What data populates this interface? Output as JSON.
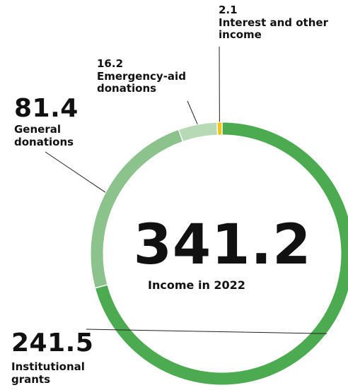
{
  "chart_data": {
    "type": "pie",
    "variant": "donut",
    "total_value": "341.2",
    "total_caption": "Income in 2022",
    "categories": [
      "Institutional grants",
      "General donations",
      "Emergency-aid donations",
      "Interest and other income"
    ],
    "values": [
      241.5,
      81.4,
      16.2,
      2.1
    ],
    "labels": [
      {
        "value": "241.5",
        "text": "Institutional grants"
      },
      {
        "value": "81.4",
        "text": "General donations"
      },
      {
        "value": "16.2",
        "text": "Emergency-aid donations"
      },
      {
        "value": "2.1",
        "text": "Interest and other income"
      }
    ],
    "colors": [
      "#4caa50",
      "#8cc38c",
      "#b7d9b6",
      "#f5c518"
    ],
    "label_line_color": "#222222"
  }
}
